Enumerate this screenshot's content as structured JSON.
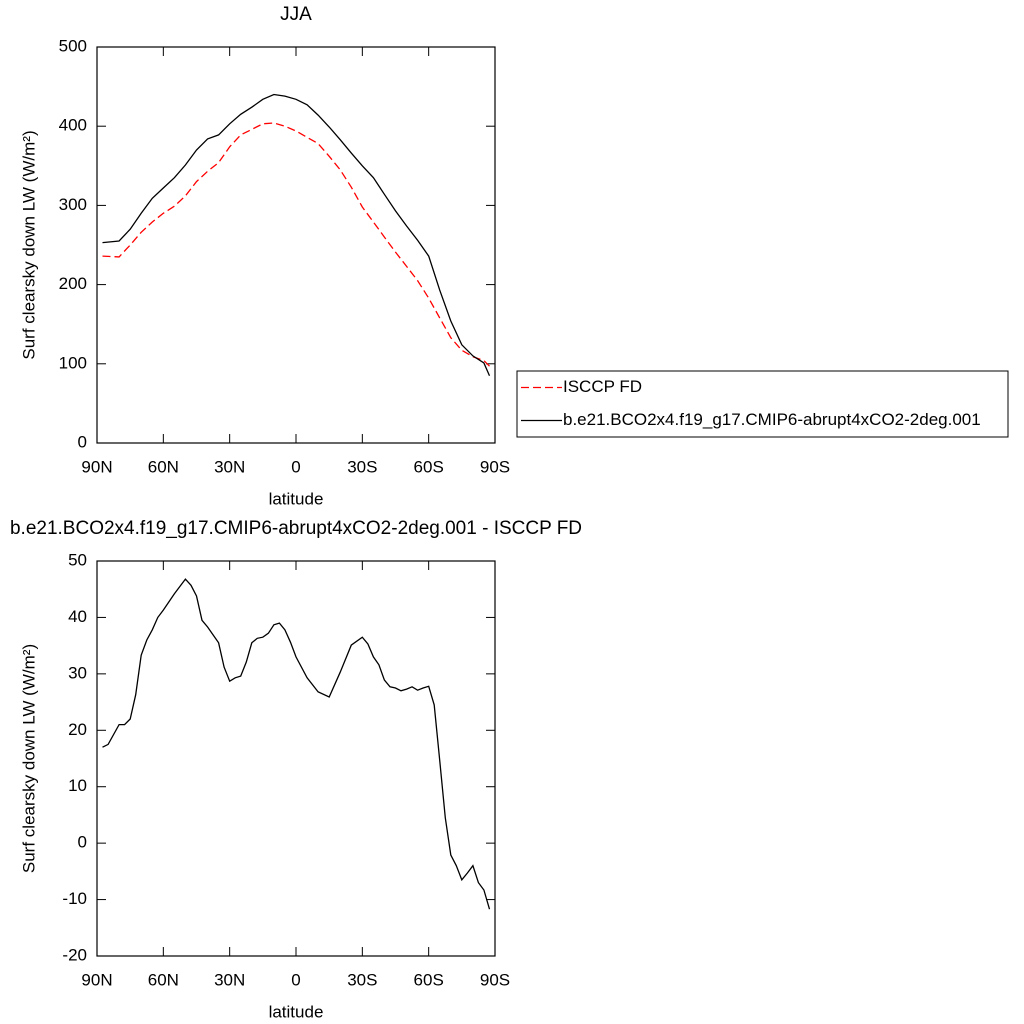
{
  "chart_data": [
    {
      "type": "line",
      "title": "JJA",
      "xlabel": "latitude",
      "ylabel": "Surf clearsky down LW (W/m²)",
      "x": [
        87.5,
        80,
        75,
        70,
        65,
        60,
        55,
        50,
        45,
        40,
        35,
        30,
        25,
        20,
        15,
        10,
        5,
        0,
        -5,
        -10,
        -15,
        -20,
        -25,
        -30,
        -35,
        -40,
        -45,
        -50,
        -55,
        -60,
        -65,
        -70,
        -75,
        -80,
        -85,
        -87.5
      ],
      "series": [
        {
          "name": "ISCCP FD",
          "color": "#ff0000",
          "dash": true,
          "values": [
            236,
            235,
            250,
            266,
            279,
            290,
            299,
            312,
            330,
            343,
            354,
            374,
            389,
            396,
            403,
            404,
            400,
            394,
            386,
            378,
            362,
            345,
            323,
            298,
            279,
            260,
            241,
            223,
            205,
            183,
            158,
            133,
            117,
            109,
            104,
            97
          ]
        },
        {
          "name": "b.e21.BCO2x4.f19_g17.CMIP6-abrupt4xCO2-2deg.001",
          "color": "#000000",
          "dash": false,
          "values": [
            253,
            255,
            270,
            290,
            309,
            322,
            335,
            351,
            370,
            384,
            389,
            403,
            415,
            424,
            434,
            440,
            438,
            434,
            427,
            414,
            399,
            383,
            366,
            350,
            335,
            314,
            293,
            274,
            256,
            236,
            193,
            154,
            124,
            110,
            101,
            85
          ]
        }
      ],
      "xlim": [
        90,
        -90
      ],
      "xticks": [
        {
          "value": 90,
          "label": "90N"
        },
        {
          "value": 60,
          "label": "60N"
        },
        {
          "value": 30,
          "label": "30N"
        },
        0,
        {
          "value": -30,
          "label": "30S"
        },
        {
          "value": -60,
          "label": "60S"
        },
        {
          "value": -90,
          "label": "90S"
        }
      ],
      "ylim": [
        0,
        500
      ],
      "yticks": [
        0,
        100,
        200,
        300,
        400,
        500
      ],
      "legend": "right"
    },
    {
      "type": "line",
      "title": "b.e21.BCO2x4.f19_g17.CMIP6-abrupt4xCO2-2deg.001 - ISCCP FD",
      "xlabel": "latitude",
      "ylabel": "Surf clearsky down LW (W/m²)",
      "x": [
        87.5,
        85,
        80,
        77.5,
        75,
        72.5,
        70,
        67.5,
        65,
        62.5,
        60,
        55,
        50,
        47.5,
        45,
        42.5,
        40,
        35,
        32.5,
        30,
        27.5,
        25,
        22.5,
        20,
        17.5,
        15,
        12.5,
        10,
        7.5,
        5,
        2.5,
        0,
        -5,
        -10,
        -15,
        -20,
        -25,
        -30,
        -32.5,
        -35,
        -37.5,
        -40,
        -42.5,
        -45,
        -47.5,
        -50,
        -52.5,
        -55,
        -57.5,
        -60,
        -62.5,
        -65,
        -67.5,
        -70,
        -72.5,
        -75,
        -77.5,
        -80,
        -82.5,
        -85,
        -87.5
      ],
      "series": [
        {
          "color": "#000000",
          "dash": false,
          "values": [
            17.0,
            17.5,
            21,
            21,
            22,
            26.3,
            33.3,
            36,
            37.8,
            40,
            41.3,
            44.2,
            46.8,
            45.7,
            43.8,
            39.5,
            38.3,
            35.5,
            31.2,
            28.7,
            29.3,
            29.6,
            32.1,
            35.5,
            36.3,
            36.5,
            37.2,
            38.7,
            39,
            37.8,
            35.6,
            33,
            29.3,
            26.8,
            25.9,
            30.3,
            35.1,
            36.5,
            35.3,
            33,
            31.6,
            28.9,
            27.7,
            27.5,
            27,
            27.3,
            27.7,
            27.1,
            27.5,
            27.8,
            24.5,
            14.7,
            4.5,
            -2.1,
            -4,
            -6.5,
            -5.3,
            -4,
            -7,
            -8.3,
            -11.7
          ]
        }
      ],
      "xlim": [
        90,
        -90
      ],
      "xticks": [
        {
          "value": 90,
          "label": "90N"
        },
        {
          "value": 60,
          "label": "60N"
        },
        {
          "value": 30,
          "label": "30N"
        },
        0,
        {
          "value": -30,
          "label": "30S"
        },
        {
          "value": -60,
          "label": "60S"
        },
        {
          "value": -90,
          "label": "90S"
        }
      ],
      "ylim": [
        -20,
        50
      ],
      "yticks": [
        -20,
        -10,
        0,
        10,
        20,
        30,
        40,
        50
      ]
    }
  ]
}
